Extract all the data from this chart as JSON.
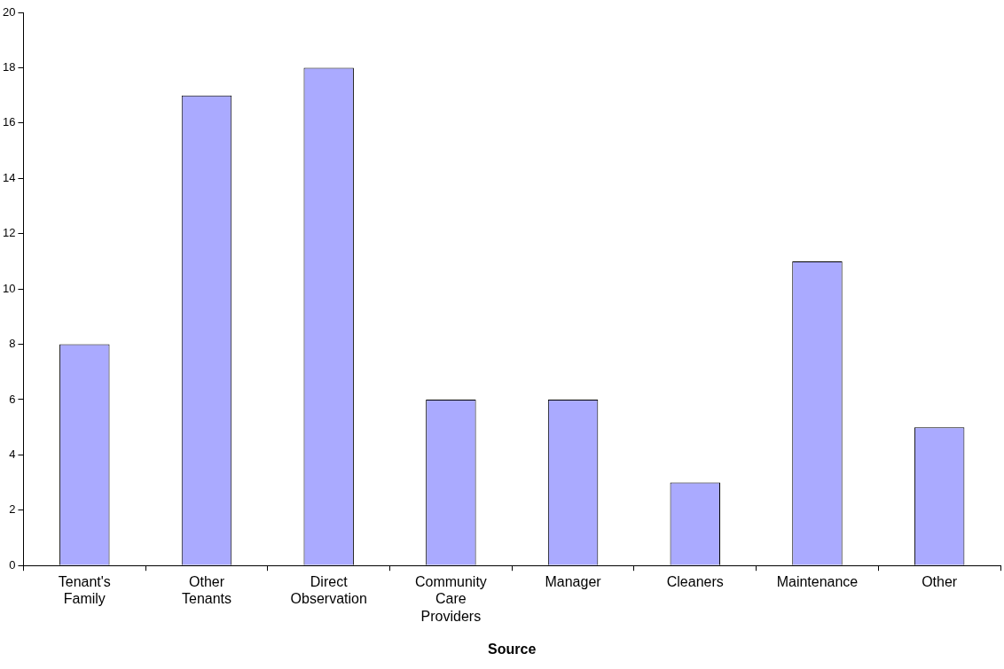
{
  "chart_data": {
    "type": "bar",
    "xlabel": "Source",
    "categories": [
      "Tenant's Family",
      "Other Tenants",
      "Direct Observation",
      "Community Care Providers",
      "Manager",
      "Cleaners",
      "Maintenance",
      "Other"
    ],
    "values": [
      8,
      17,
      18,
      6,
      6,
      3,
      11,
      5
    ],
    "color": "#aaaaff",
    "ylim": [
      0,
      20
    ],
    "yticks": [
      0,
      2,
      4,
      6,
      8,
      10,
      12,
      14,
      16,
      18,
      20
    ],
    "grid": false,
    "legend": false
  }
}
